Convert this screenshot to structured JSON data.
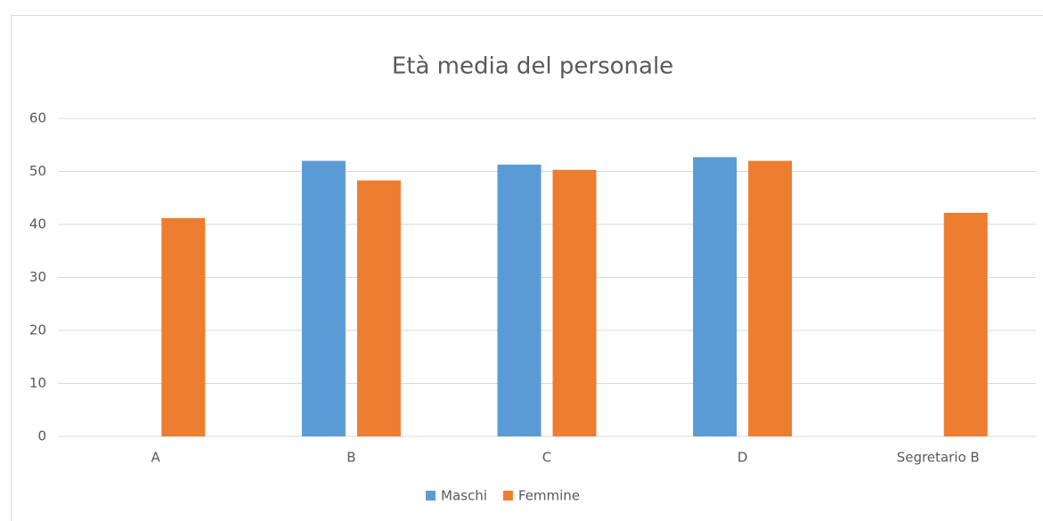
{
  "chart_data": {
    "type": "bar",
    "title": "Età media del personale",
    "categories": [
      "A",
      "B",
      "C",
      "D",
      "Segretario B"
    ],
    "series": [
      {
        "name": "Maschi",
        "color": "#5b9bd5",
        "values": [
          null,
          52,
          51.3,
          52.7,
          null
        ]
      },
      {
        "name": "Femmine",
        "color": "#ed7d31",
        "values": [
          41.2,
          48.3,
          50.3,
          52,
          42.2
        ]
      }
    ],
    "ylim": [
      0,
      60
    ],
    "yticks": [
      0,
      10,
      20,
      30,
      40,
      50,
      60
    ],
    "grid": true,
    "legend": "bottom"
  }
}
